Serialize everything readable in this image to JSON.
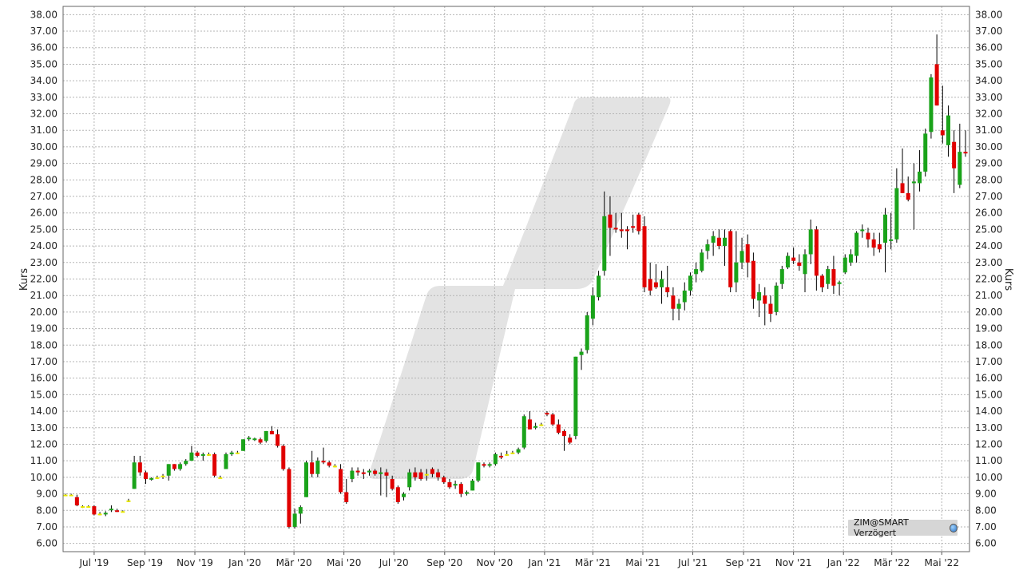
{
  "source_label": "ZIM@SMART Verzögert",
  "source_icon": "globe-icon",
  "chart_data": {
    "type": "candlestick",
    "xlabel": "",
    "ylabel": "Kurs",
    "ylabel_right": "Kurs",
    "ylim": [
      5.5,
      38.5
    ],
    "y_ticks": [
      "6.00",
      "7.00",
      "8.00",
      "9.00",
      "10.00",
      "11.00",
      "12.00",
      "13.00",
      "14.00",
      "15.00",
      "16.00",
      "17.00",
      "18.00",
      "19.00",
      "20.00",
      "21.00",
      "22.00",
      "23.00",
      "24.00",
      "25.00",
      "26.00",
      "27.00",
      "28.00",
      "29.00",
      "30.00",
      "31.00",
      "32.00",
      "33.00",
      "34.00",
      "35.00",
      "36.00",
      "37.00",
      "38.00"
    ],
    "x_ticks": [
      "Jul '19",
      "Sep '19",
      "Nov '19",
      "Jan '20",
      "Mär '20",
      "Mai '20",
      "Jul '20",
      "Sep '20",
      "Nov '20",
      "Jan '21",
      "Mär '21",
      "Mai '21",
      "Jul '21",
      "Sep '21",
      "Nov '21",
      "Jan '22",
      "Mär '22",
      "Mai '22"
    ],
    "x_range": [
      "2019-05-27",
      "2022-05-30"
    ],
    "grid": true,
    "up_color": "#1aa31a",
    "down_color": "#e00000",
    "flat_color": "#e8e800",
    "period": "weekly",
    "candles": [
      [
        "2019-05-27",
        8.95,
        9.0,
        8.9,
        8.95
      ],
      [
        "2019-06-03",
        8.95,
        9.0,
        8.9,
        8.95
      ],
      [
        "2019-06-10",
        8.8,
        8.95,
        8.25,
        8.3
      ],
      [
        "2019-06-17",
        8.25,
        8.3,
        8.15,
        8.25
      ],
      [
        "2019-06-24",
        8.25,
        8.3,
        8.2,
        8.25
      ],
      [
        "2019-07-01",
        8.25,
        8.3,
        7.7,
        7.75
      ],
      [
        "2019-07-08",
        7.8,
        7.9,
        7.7,
        7.8
      ],
      [
        "2019-07-15",
        7.8,
        7.95,
        7.65,
        7.85
      ],
      [
        "2019-07-22",
        8.05,
        8.3,
        7.9,
        8.1
      ],
      [
        "2019-07-29",
        8.0,
        8.1,
        7.9,
        7.95
      ],
      [
        "2019-08-05",
        7.95,
        8.0,
        7.9,
        7.95
      ],
      [
        "2019-08-12",
        8.6,
        8.7,
        8.5,
        8.6
      ],
      [
        "2019-08-19",
        9.3,
        11.3,
        9.3,
        10.9
      ],
      [
        "2019-08-26",
        10.9,
        11.3,
        10.1,
        10.3
      ],
      [
        "2019-09-02",
        10.3,
        10.4,
        9.6,
        9.9
      ],
      [
        "2019-09-09",
        9.9,
        10.0,
        9.8,
        9.95
      ],
      [
        "2019-09-16",
        10.0,
        10.1,
        9.9,
        10.0
      ],
      [
        "2019-09-23",
        10.1,
        10.2,
        9.9,
        10.1
      ],
      [
        "2019-09-30",
        10.1,
        10.8,
        9.8,
        10.8
      ],
      [
        "2019-10-07",
        10.8,
        10.8,
        10.4,
        10.5
      ],
      [
        "2019-10-14",
        10.5,
        10.9,
        10.4,
        10.8
      ],
      [
        "2019-10-21",
        10.8,
        11.1,
        10.7,
        11.0
      ],
      [
        "2019-10-28",
        11.0,
        11.9,
        11.0,
        11.5
      ],
      [
        "2019-11-04",
        11.5,
        11.6,
        11.2,
        11.3
      ],
      [
        "2019-11-11",
        11.3,
        11.5,
        11.0,
        11.4
      ],
      [
        "2019-11-18",
        11.4,
        11.5,
        11.3,
        11.4
      ],
      [
        "2019-11-25",
        11.4,
        11.5,
        10.0,
        10.1
      ],
      [
        "2019-12-02",
        10.0,
        10.1,
        9.95,
        10.0
      ],
      [
        "2019-12-09",
        10.5,
        11.5,
        10.5,
        11.4
      ],
      [
        "2019-12-16",
        11.4,
        11.6,
        11.3,
        11.5
      ],
      [
        "2019-12-23",
        11.5,
        11.6,
        11.4,
        11.5
      ],
      [
        "2019-12-30",
        11.6,
        12.3,
        11.6,
        12.3
      ],
      [
        "2020-01-06",
        12.3,
        12.5,
        12.2,
        12.4
      ],
      [
        "2020-01-13",
        12.3,
        12.4,
        12.2,
        12.35
      ],
      [
        "2020-01-20",
        12.3,
        12.4,
        12.0,
        12.1
      ],
      [
        "2020-01-27",
        12.2,
        12.8,
        12.1,
        12.8
      ],
      [
        "2020-02-03",
        12.8,
        13.1,
        12.6,
        12.6
      ],
      [
        "2020-02-10",
        12.6,
        12.9,
        11.8,
        11.9
      ],
      [
        "2020-02-17",
        11.9,
        12.0,
        10.4,
        10.5
      ],
      [
        "2020-02-24",
        10.5,
        10.6,
        6.9,
        7.0
      ],
      [
        "2020-03-02",
        7.0,
        8.1,
        6.9,
        7.8
      ],
      [
        "2020-03-09",
        7.8,
        8.3,
        7.2,
        8.2
      ],
      [
        "2020-03-16",
        8.8,
        11.0,
        8.8,
        10.9
      ],
      [
        "2020-03-23",
        10.9,
        11.6,
        10.0,
        10.2
      ],
      [
        "2020-03-30",
        10.2,
        11.2,
        10.0,
        11.0
      ],
      [
        "2020-04-06",
        11.0,
        11.8,
        10.8,
        10.9
      ],
      [
        "2020-04-13",
        10.9,
        11.0,
        10.6,
        10.7
      ],
      [
        "2020-04-20",
        10.7,
        10.8,
        10.6,
        10.7
      ],
      [
        "2020-04-27",
        10.5,
        10.8,
        9.0,
        9.1
      ],
      [
        "2020-05-04",
        9.1,
        9.9,
        8.4,
        8.5
      ],
      [
        "2020-05-11",
        9.9,
        10.6,
        9.7,
        10.4
      ],
      [
        "2020-05-18",
        10.4,
        10.6,
        10.1,
        10.3
      ],
      [
        "2020-05-25",
        10.3,
        10.5,
        9.9,
        10.2
      ],
      [
        "2020-06-01",
        10.3,
        10.5,
        10.1,
        10.4
      ],
      [
        "2020-06-08",
        10.4,
        10.5,
        10.1,
        10.2
      ],
      [
        "2020-06-15",
        10.2,
        10.6,
        8.9,
        10.3
      ],
      [
        "2020-06-22",
        10.3,
        10.5,
        8.8,
        10.1
      ],
      [
        "2020-06-29",
        9.9,
        10.1,
        9.2,
        9.3
      ],
      [
        "2020-07-06",
        9.4,
        9.5,
        8.4,
        8.5
      ],
      [
        "2020-07-13",
        8.8,
        9.1,
        8.6,
        9.0
      ],
      [
        "2020-07-20",
        9.4,
        10.5,
        9.2,
        10.3
      ],
      [
        "2020-07-27",
        10.3,
        10.6,
        9.8,
        10.0
      ],
      [
        "2020-08-03",
        10.3,
        10.5,
        9.8,
        9.9
      ],
      [
        "2020-08-10",
        10.2,
        10.5,
        9.8,
        10.2
      ],
      [
        "2020-08-17",
        10.5,
        10.6,
        10.0,
        10.2
      ],
      [
        "2020-08-24",
        10.3,
        10.5,
        9.8,
        10.0
      ],
      [
        "2020-08-31",
        10.0,
        10.1,
        9.6,
        9.7
      ],
      [
        "2020-09-07",
        9.7,
        9.9,
        9.3,
        9.4
      ],
      [
        "2020-09-14",
        9.5,
        9.8,
        9.3,
        9.6
      ],
      [
        "2020-09-21",
        9.6,
        9.7,
        8.8,
        9.0
      ],
      [
        "2020-09-28",
        9.0,
        9.2,
        8.9,
        9.1
      ],
      [
        "2020-10-05",
        9.2,
        9.9,
        9.2,
        9.8
      ],
      [
        "2020-10-12",
        9.8,
        10.9,
        9.7,
        10.9
      ],
      [
        "2020-10-19",
        10.8,
        10.9,
        10.6,
        10.7
      ],
      [
        "2020-10-26",
        10.7,
        10.9,
        10.6,
        10.8
      ],
      [
        "2020-11-02",
        10.8,
        11.5,
        10.7,
        11.4
      ],
      [
        "2020-11-09",
        11.3,
        11.5,
        11.1,
        11.2
      ],
      [
        "2020-11-16",
        11.4,
        11.6,
        11.3,
        11.4
      ],
      [
        "2020-11-23",
        11.5,
        11.6,
        11.4,
        11.5
      ],
      [
        "2020-11-30",
        11.5,
        11.8,
        11.4,
        11.7
      ],
      [
        "2020-12-07",
        11.8,
        13.8,
        11.7,
        13.7
      ],
      [
        "2020-12-14",
        13.5,
        14.0,
        12.9,
        12.9
      ],
      [
        "2020-12-21",
        13.0,
        13.3,
        12.9,
        13.1
      ],
      [
        "2020-12-28",
        13.2,
        13.3,
        13.1,
        13.2
      ],
      [
        "2021-01-04",
        13.9,
        14.0,
        13.7,
        13.8
      ],
      [
        "2021-01-11",
        13.8,
        13.9,
        13.1,
        13.2
      ],
      [
        "2021-01-18",
        13.2,
        13.5,
        12.6,
        12.7
      ],
      [
        "2021-01-25",
        12.8,
        12.9,
        11.6,
        12.5
      ],
      [
        "2021-02-01",
        12.4,
        12.6,
        12.0,
        12.1
      ],
      [
        "2021-02-08",
        12.5,
        17.3,
        12.3,
        17.3
      ],
      [
        "2021-02-15",
        17.4,
        17.8,
        16.5,
        17.6
      ],
      [
        "2021-02-22",
        17.7,
        20.0,
        17.5,
        19.8
      ],
      [
        "2021-03-01",
        19.6,
        21.5,
        19.2,
        21.0
      ],
      [
        "2021-03-08",
        20.9,
        22.5,
        20.7,
        22.2
      ],
      [
        "2021-03-15",
        22.5,
        27.3,
        22.2,
        25.8
      ],
      [
        "2021-03-22",
        25.9,
        27.0,
        23.4,
        25.1
      ],
      [
        "2021-03-29",
        25.1,
        26.0,
        24.8,
        25.0
      ],
      [
        "2021-04-05",
        25.0,
        26.0,
        24.5,
        24.9
      ],
      [
        "2021-04-12",
        25.0,
        25.2,
        23.8,
        24.9
      ],
      [
        "2021-04-19",
        25.2,
        25.9,
        24.8,
        25.1
      ],
      [
        "2021-04-26",
        25.9,
        26.0,
        24.7,
        24.9
      ],
      [
        "2021-05-03",
        25.2,
        25.8,
        21.2,
        21.5
      ],
      [
        "2021-05-10",
        22.0,
        23.0,
        21.0,
        21.3
      ],
      [
        "2021-05-17",
        21.8,
        22.9,
        21.4,
        21.5
      ],
      [
        "2021-05-24",
        21.5,
        22.5,
        20.5,
        22.0
      ],
      [
        "2021-05-31",
        21.5,
        22.8,
        20.9,
        21.2
      ],
      [
        "2021-06-07",
        21.0,
        21.5,
        19.5,
        20.2
      ],
      [
        "2021-06-14",
        20.2,
        20.8,
        19.5,
        20.5
      ],
      [
        "2021-06-21",
        20.6,
        21.8,
        20.1,
        21.3
      ],
      [
        "2021-06-28",
        21.3,
        22.4,
        21.0,
        22.2
      ],
      [
        "2021-07-05",
        22.3,
        23.0,
        21.8,
        22.6
      ],
      [
        "2021-07-12",
        22.5,
        23.8,
        22.4,
        23.6
      ],
      [
        "2021-07-19",
        23.7,
        24.4,
        23.2,
        24.1
      ],
      [
        "2021-07-26",
        24.2,
        24.9,
        23.4,
        24.6
      ],
      [
        "2021-08-02",
        24.5,
        25.0,
        23.8,
        24.0
      ],
      [
        "2021-08-09",
        24.0,
        25.0,
        22.8,
        24.5
      ],
      [
        "2021-08-16",
        24.9,
        25.0,
        21.2,
        21.5
      ],
      [
        "2021-08-23",
        21.8,
        24.9,
        21.2,
        23.0
      ],
      [
        "2021-08-30",
        23.0,
        24.5,
        22.6,
        23.7
      ],
      [
        "2021-09-06",
        24.1,
        24.7,
        22.1,
        23.0
      ],
      [
        "2021-09-13",
        23.1,
        23.6,
        20.2,
        20.8
      ],
      [
        "2021-09-20",
        20.7,
        21.7,
        19.7,
        21.2
      ],
      [
        "2021-09-27",
        21.0,
        21.5,
        19.2,
        20.5
      ],
      [
        "2021-10-04",
        20.5,
        21.0,
        19.4,
        19.9
      ],
      [
        "2021-10-11",
        20.0,
        21.8,
        19.8,
        21.6
      ],
      [
        "2021-10-18",
        21.7,
        22.8,
        21.4,
        22.6
      ],
      [
        "2021-10-25",
        22.7,
        23.6,
        22.6,
        23.4
      ],
      [
        "2021-11-01",
        23.3,
        23.9,
        22.9,
        23.1
      ],
      [
        "2021-11-08",
        23.0,
        23.5,
        22.5,
        22.8
      ],
      [
        "2021-11-15",
        22.3,
        23.8,
        21.2,
        23.5
      ],
      [
        "2021-11-22",
        23.5,
        25.6,
        22.9,
        25.0
      ],
      [
        "2021-11-29",
        25.0,
        25.2,
        21.3,
        22.2
      ],
      [
        "2021-12-06",
        22.2,
        22.3,
        21.2,
        21.5
      ],
      [
        "2021-12-13",
        21.7,
        22.8,
        21.4,
        22.6
      ],
      [
        "2021-12-20",
        22.6,
        23.4,
        21.1,
        21.6
      ],
      [
        "2021-12-27",
        21.7,
        21.9,
        21.0,
        21.8
      ],
      [
        "2022-01-03",
        22.4,
        23.5,
        22.3,
        23.3
      ],
      [
        "2022-01-10",
        23.0,
        23.8,
        22.8,
        23.5
      ],
      [
        "2022-01-17",
        23.4,
        24.9,
        23.0,
        24.8
      ],
      [
        "2022-01-24",
        24.9,
        25.3,
        24.5,
        25.0
      ],
      [
        "2022-01-31",
        24.8,
        25.1,
        23.9,
        24.4
      ],
      [
        "2022-02-07",
        24.4,
        24.8,
        23.4,
        23.9
      ],
      [
        "2022-02-14",
        24.1,
        24.8,
        23.6,
        23.8
      ],
      [
        "2022-02-21",
        24.2,
        26.3,
        22.4,
        25.9
      ],
      [
        "2022-02-28",
        24.3,
        26.0,
        23.8,
        24.4
      ],
      [
        "2022-03-07",
        24.4,
        28.7,
        24.2,
        27.5
      ],
      [
        "2022-03-14",
        27.8,
        29.9,
        27.2,
        27.2
      ],
      [
        "2022-03-21",
        27.2,
        28.2,
        26.7,
        26.8
      ],
      [
        "2022-03-28",
        27.8,
        29.0,
        25.0,
        27.9
      ],
      [
        "2022-04-04",
        27.8,
        29.8,
        27.3,
        28.5
      ],
      [
        "2022-04-11",
        28.5,
        31.1,
        28.2,
        30.8
      ],
      [
        "2022-04-18",
        30.9,
        34.4,
        30.5,
        34.2
      ],
      [
        "2022-04-25",
        35.0,
        36.8,
        32.5,
        32.5
      ],
      [
        "2022-05-02",
        31.0,
        33.7,
        30.2,
        30.7
      ],
      [
        "2022-05-09",
        30.1,
        32.5,
        29.4,
        31.9
      ],
      [
        "2022-05-16",
        30.3,
        31.0,
        27.2,
        28.7
      ],
      [
        "2022-05-23",
        27.7,
        31.4,
        27.5,
        29.7
      ],
      [
        "2022-05-30",
        29.7,
        31.0,
        29.4,
        29.6
      ]
    ]
  }
}
